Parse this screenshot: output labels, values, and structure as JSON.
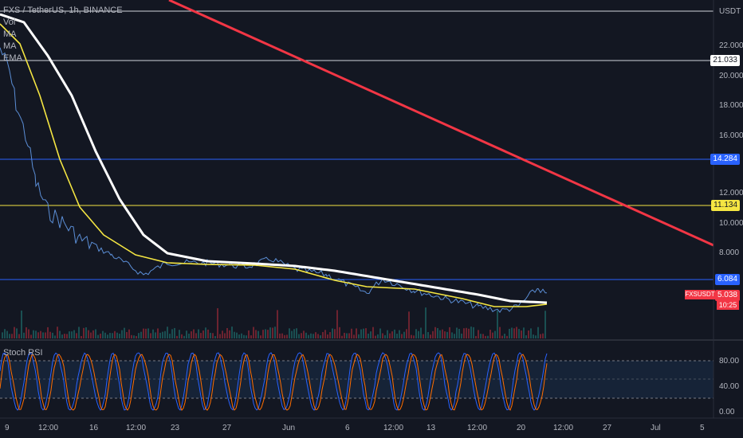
{
  "legend": {
    "symbol": "FXS / TetherUS, 1h, BINANCE",
    "vol": "Vol",
    "ma1": "MA",
    "ma2": "MA",
    "ema": "EMA"
  },
  "stoch_label": "Stoch RSI",
  "price_axis": {
    "currency": "USDT",
    "ticks": [
      "22.000",
      "20.000",
      "18.000",
      "16.000",
      "12.000",
      "10.000",
      "8.000"
    ],
    "rsi_ticks": [
      "80.00",
      "40.00",
      "0.00"
    ]
  },
  "time_axis": {
    "labels": [
      "9",
      "12:00",
      "16",
      "12:00",
      "23",
      "27",
      "Jun",
      "6",
      "12:00",
      "13",
      "12:00",
      "20",
      "12:00",
      "27",
      "Jul",
      "5"
    ]
  },
  "price_tags": {
    "line_21": "21.033",
    "line_14": "14.284",
    "line_11": "11.134",
    "line_6": "6.084",
    "symbol": "FXSUSDT",
    "current": "5.038",
    "countdown": "10:25"
  },
  "colors": {
    "background": "#131722",
    "white_ma": "#ffffff",
    "yellow_ma": "#f5e642",
    "price": "#5b8ed6",
    "trendline": "#f23645",
    "blue_line": "#2962ff",
    "yellow_line": "#f5e642",
    "rsi_k": "#2962ff",
    "rsi_d": "#ff6d00"
  }
}
